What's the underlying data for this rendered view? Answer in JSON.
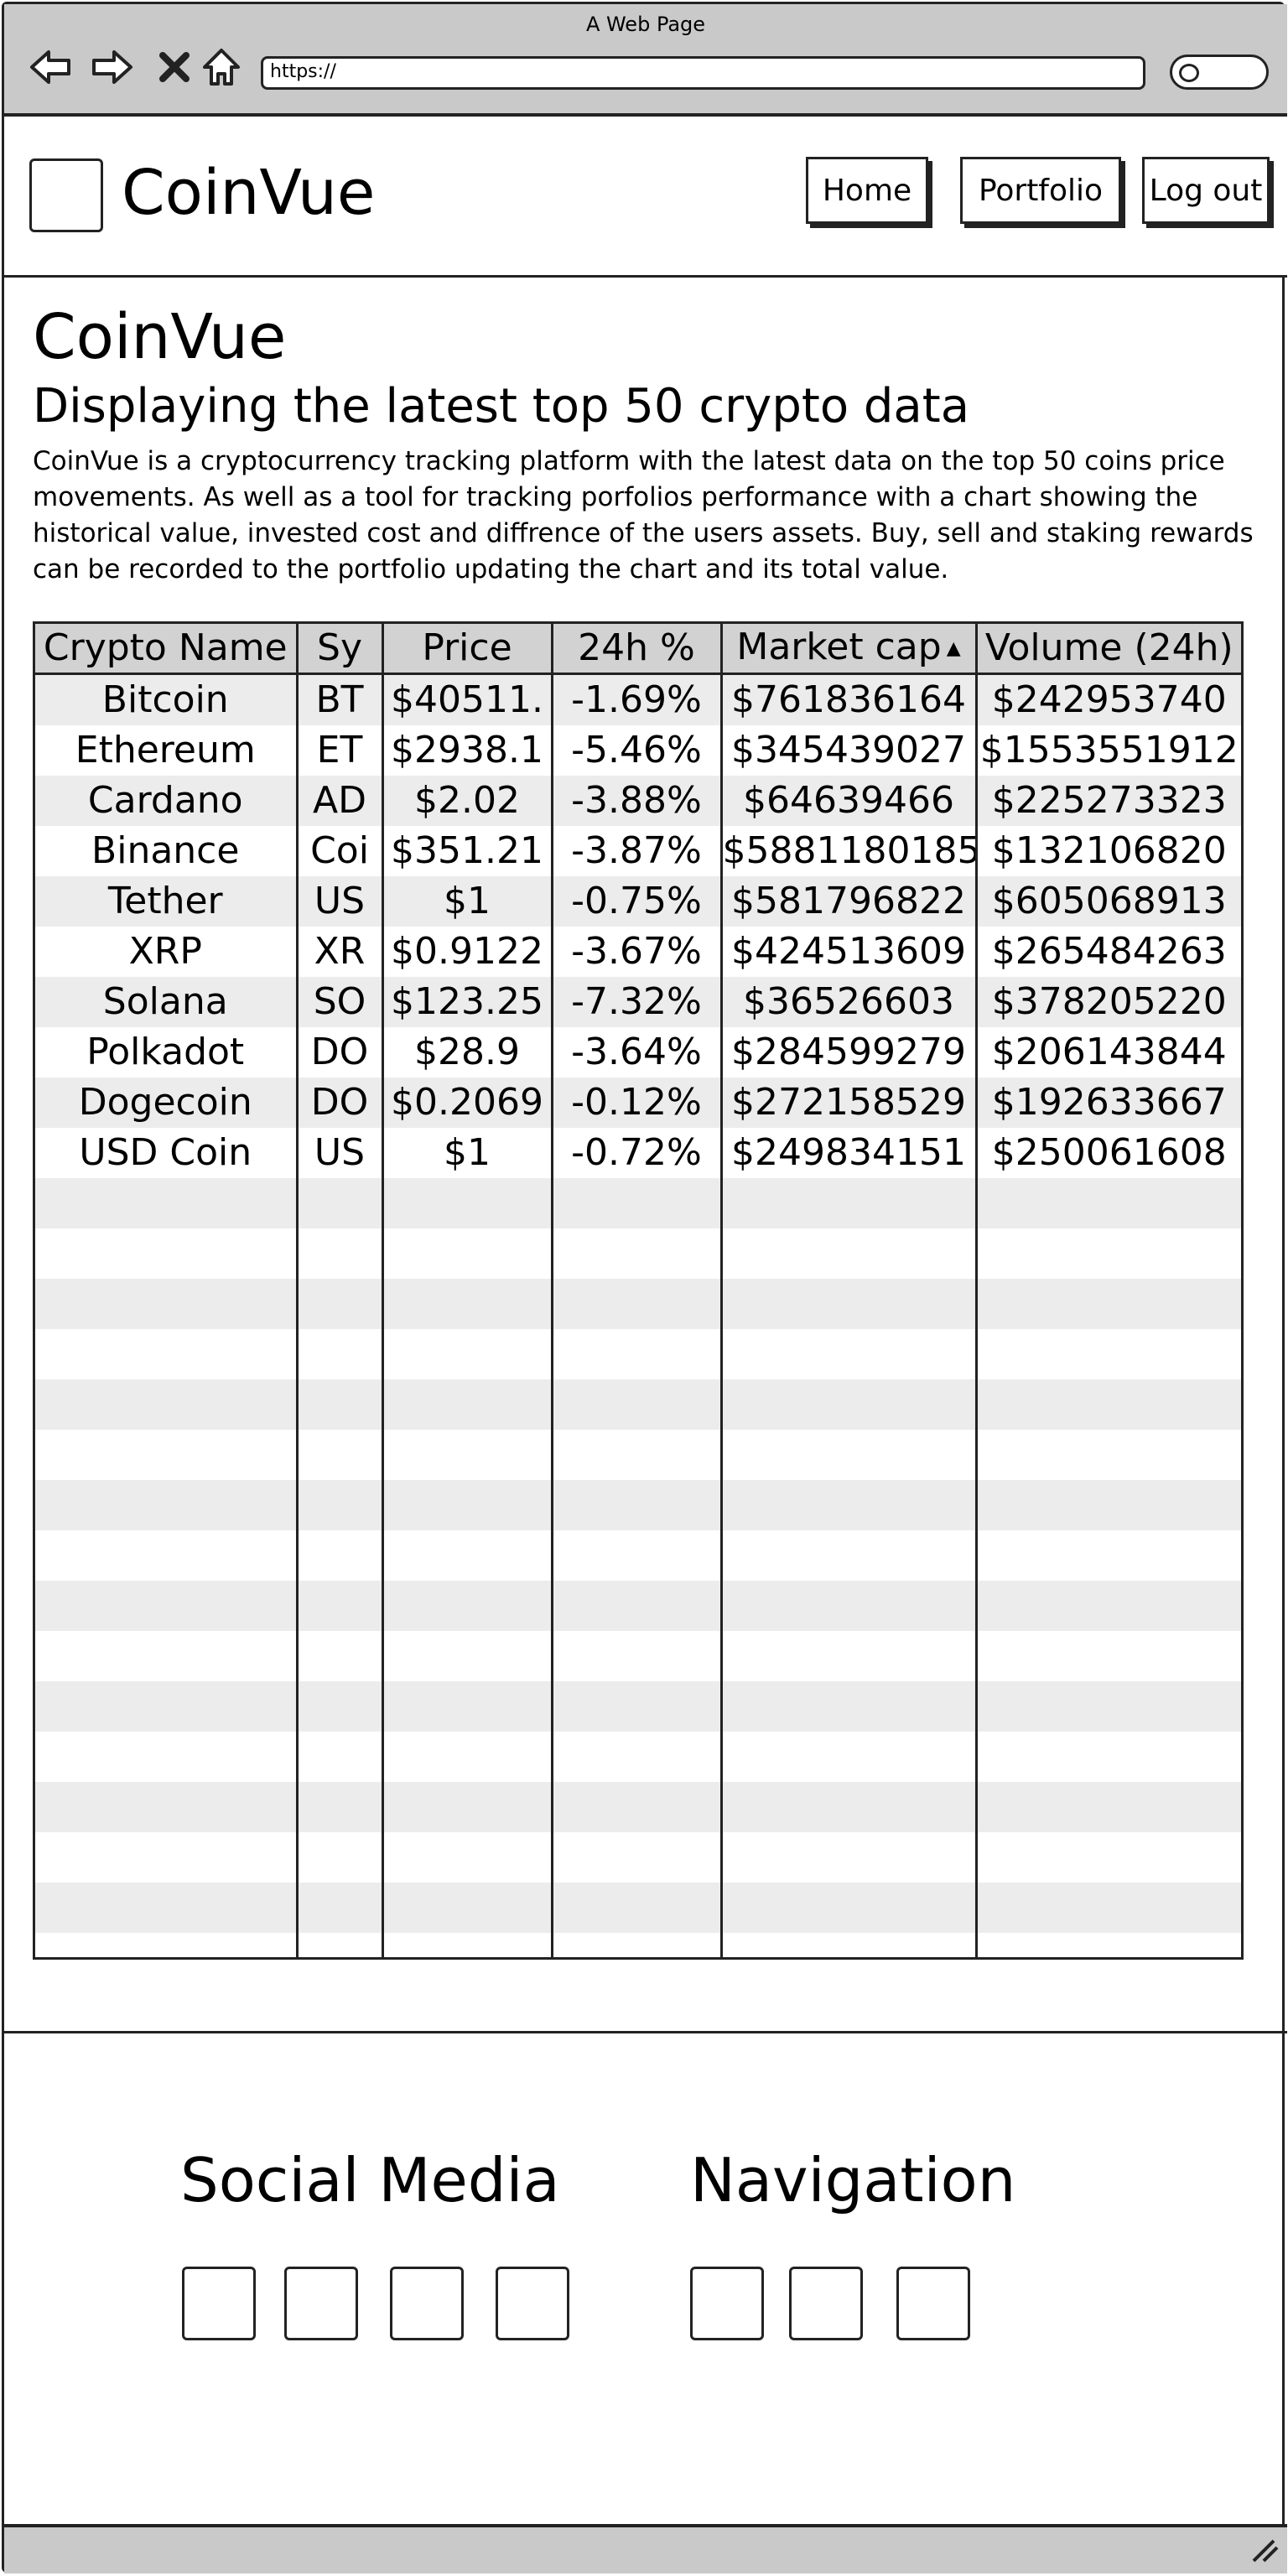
{
  "browser": {
    "window_title": "A Web Page",
    "url": "https://"
  },
  "header": {
    "brand": "CoinVue",
    "nav": [
      "Home",
      "Portfolio",
      "Log out"
    ]
  },
  "main": {
    "title": "CoinVue",
    "subtitle": "Displaying the latest top 50 crypto data",
    "description": "CoinVue is a cryptocurrency tracking platform with the latest data on the top 50 coins price movements. As well as a tool for tracking porfolios performance with a chart showing the historical value, invested cost and diffrence of the users assets. Buy, sell and staking rewards can be recorded to the portfolio updating the chart and its total value."
  },
  "table": {
    "columns": [
      "Crypto Name",
      "Sy",
      "Price",
      "24h %",
      "Market cap",
      "Volume (24h)"
    ],
    "sorted_column": "Market cap",
    "rows": [
      [
        "Bitcoin",
        "BT",
        "$40511.",
        "-1.69%",
        "$761836164",
        "$242953740"
      ],
      [
        "Ethereum",
        "ET",
        "$2938.1",
        "-5.46%",
        "$345439027",
        "$1553551912"
      ],
      [
        "Cardano",
        "AD",
        "$2.02",
        "-3.88%",
        "$64639466",
        "$225273323"
      ],
      [
        "Binance",
        "Coi",
        "$351.21",
        "-3.87%",
        "$5881180185",
        "$132106820"
      ],
      [
        "Tether",
        "US",
        "$1",
        "-0.75%",
        "$581796822",
        "$605068913"
      ],
      [
        "XRP",
        "XR",
        "$0.9122",
        "-3.67%",
        "$424513609",
        "$265484263"
      ],
      [
        "Solana",
        "SO",
        "$123.25",
        "-7.32%",
        "$36526603",
        "$378205220"
      ],
      [
        "Polkadot",
        "DO",
        "$28.9",
        "-3.64%",
        "$284599279",
        "$206143844"
      ],
      [
        "Dogecoin",
        "DO",
        "$0.2069",
        "-0.12%",
        "$272158529",
        "$192633667"
      ],
      [
        "USD Coin",
        "US",
        "$1",
        "-0.72%",
        "$249834151",
        "$250061608"
      ]
    ]
  },
  "footer": {
    "social_heading": "Social Media",
    "nav_heading": "Navigation"
  }
}
